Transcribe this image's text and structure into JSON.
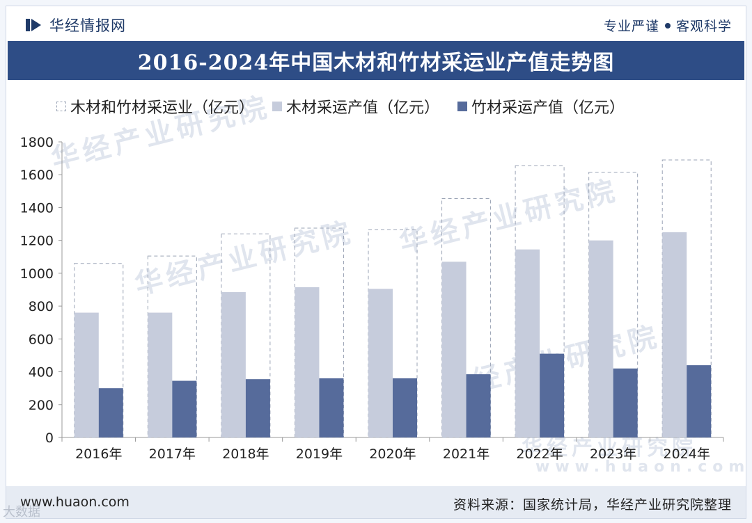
{
  "header": {
    "logo_text": "华经情报网",
    "tagline_left": "专业严谨",
    "tagline_right": "客观科学",
    "logo_icon": "huajing-logo-icon"
  },
  "watermark": {
    "text": "华经产业研究院",
    "url": "www.huaon.com"
  },
  "corner_mark": "大数据",
  "footer": {
    "site": "www.huaon.com",
    "source": "资料来源：国家统计局，华经产业研究院整理"
  },
  "colors": {
    "total_outline": "#9aa3b5",
    "wood": "#c6ccdc",
    "bamboo": "#566b9b",
    "title_bg": "#2e4d86"
  },
  "chart_data": {
    "type": "bar",
    "title": "2016-2024年中国木材和竹材采运业产值走势图",
    "categories": [
      "2016年",
      "2017年",
      "2018年",
      "2019年",
      "2020年",
      "2021年",
      "2022年",
      "2023年",
      "2024年"
    ],
    "series": [
      {
        "name": "木材和竹材采运业（亿元）",
        "values": [
          1060,
          1105,
          1240,
          1275,
          1265,
          1455,
          1655,
          1615,
          1690
        ],
        "style": "dashed-outline"
      },
      {
        "name": "木材采运产值（亿元）",
        "values": [
          760,
          760,
          885,
          915,
          905,
          1070,
          1145,
          1200,
          1250
        ],
        "style": "solid"
      },
      {
        "name": "竹材采运产值（亿元）",
        "values": [
          300,
          345,
          355,
          360,
          360,
          385,
          510,
          420,
          440
        ],
        "style": "solid"
      }
    ],
    "ylim": [
      0,
      1800
    ],
    "yticks": [
      0,
      200,
      400,
      600,
      800,
      1000,
      1200,
      1400,
      1600,
      1800
    ],
    "ytick_labels": [
      "0",
      "200",
      "400",
      "600",
      "800",
      "1000",
      "1200",
      "1400",
      "1600",
      "1800"
    ],
    "xlabel": "",
    "ylabel": "",
    "legend_position": "top-left",
    "grid": false
  }
}
